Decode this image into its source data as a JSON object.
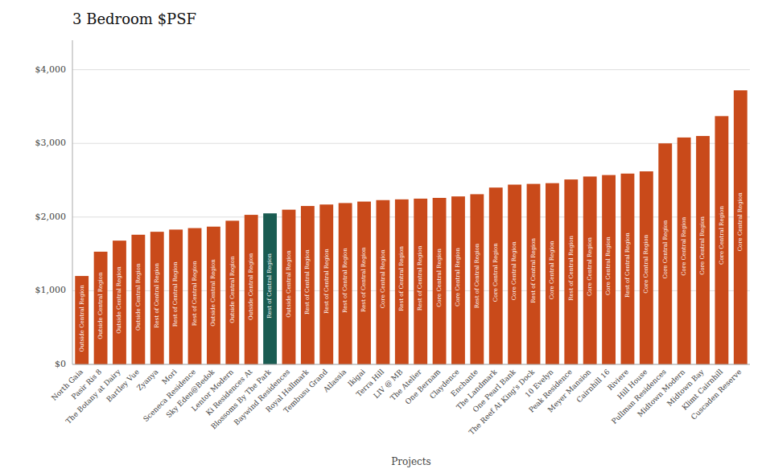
{
  "chart_data": {
    "type": "bar",
    "title": "3 Bedroom $PSF",
    "xlabel": "Projects",
    "categories": [
      "North Gaia",
      "Pasir Ris 8",
      "The Botany at Dairy",
      "Bartley Vue",
      "Zyanya",
      "Mori",
      "Sceneca Residence",
      "Sky Eden@Bedok",
      "Lentor Modern",
      "Ki Residences At",
      "Blossoms By The Park",
      "Baywind Residences",
      "Royal Hallmark",
      "Tembusu Grand",
      "Atlassia",
      "Ikigai",
      "Terra Hill",
      "LIV @ MB",
      "The Atelier",
      "One Bernam",
      "Claydence",
      "Enchante",
      "The Landmark",
      "One Pearl Bank",
      "The Reef At King's Dock",
      "10 Evelyn",
      "Peak Residence",
      "Meyer Mansion",
      "Cairnhill 16",
      "Riviere",
      "Hill House",
      "Pullman Residences",
      "Midtown Modern",
      "Midtown Bay",
      "Klimt Cairnhill",
      "Cuscaden Reserve"
    ],
    "values": [
      1200,
      1530,
      1680,
      1760,
      1800,
      1830,
      1850,
      1870,
      1950,
      2030,
      2050,
      2100,
      2150,
      2170,
      2190,
      2210,
      2230,
      2240,
      2250,
      2260,
      2280,
      2310,
      2400,
      2440,
      2450,
      2460,
      2510,
      2550,
      2570,
      2590,
      2620,
      3000,
      3080,
      3100,
      3370,
      3720
    ],
    "colors": [
      "#c94a1a",
      "#c94a1a",
      "#c94a1a",
      "#c94a1a",
      "#c94a1a",
      "#c94a1a",
      "#c94a1a",
      "#c94a1a",
      "#c94a1a",
      "#c94a1a",
      "#1a5c52",
      "#c94a1a",
      "#c94a1a",
      "#c94a1a",
      "#c94a1a",
      "#c94a1a",
      "#c94a1a",
      "#c94a1a",
      "#c94a1a",
      "#c94a1a",
      "#c94a1a",
      "#c94a1a",
      "#c94a1a",
      "#c94a1a",
      "#c94a1a",
      "#c94a1a",
      "#c94a1a",
      "#c94a1a",
      "#c94a1a",
      "#c94a1a",
      "#c94a1a",
      "#c94a1a",
      "#c94a1a",
      "#c94a1a",
      "#c94a1a",
      "#c94a1a"
    ],
    "annotations": [
      "Outside Central Region",
      "Outside Central Region",
      "Outside Central Region",
      "Outside Central Region",
      "Rest of Central Region",
      "Rest of Central Region",
      "Rest of Central Region",
      "Outside Central Region",
      "Outside Central Region",
      "Outside Central Region",
      "Rest of Central Region",
      "Outside Central Region",
      "Rest of Central Region",
      "Rest of Central Region",
      "Rest of Central Region",
      "Rest of Central Region",
      "Core Central Region",
      "Rest of Central Region",
      "Rest of Central Region",
      "Core Central Region",
      "Core Central Region",
      "Rest of Central Region",
      "Core Central Region",
      "Core Central Region",
      "Rest of Central Region",
      "Core Central Region",
      "Rest of Central Region",
      "Core Central Region",
      "Core Central Region",
      "Rest of Central Region",
      "Core Central Region",
      "Core Central Region",
      "Core Central Region",
      "Core Central Region",
      "Core Central Region",
      "Core Central Region"
    ],
    "ylim": [
      0,
      4400
    ],
    "yticks": [
      {
        "value": 0,
        "label": "$0"
      },
      {
        "value": 1000,
        "label": "$1,000"
      },
      {
        "value": 2000,
        "label": "$2,000"
      },
      {
        "value": 3000,
        "label": "$3,000"
      },
      {
        "value": 4000,
        "label": "$4,000"
      }
    ],
    "grid": true
  }
}
